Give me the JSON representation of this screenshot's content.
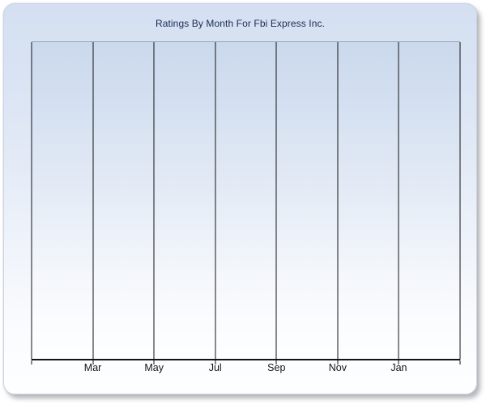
{
  "panel": {
    "title": "Ratings By Month For Fbi Express Inc."
  },
  "colors": {
    "title_text": "#1b2b52",
    "panel_bg_top": "#d4e0f2",
    "panel_bg_bottom": "#fdfeff",
    "panel_border": "#c9d3e2",
    "plot_bg_top": "#cbd9ed",
    "plot_bg_bottom": "#fdfeff",
    "plot_top_border": "#9aa5b6",
    "gridline": "#141414",
    "axis_line": "#141414",
    "tick_label_text": "#151515"
  },
  "chart_data": {
    "type": "line",
    "title": "Ratings By Month For Fbi Express Inc.",
    "xlabel": "",
    "ylabel": "",
    "x_tick_labels": [
      "Mar",
      "May",
      "Jul",
      "Sep",
      "Nov",
      "Jan"
    ],
    "x_gridline_count": 8,
    "labeled_gridline_start_index": 1,
    "grid": "vertical",
    "legend": null,
    "series": [],
    "notes": "plot area contains no visible data points; y-axis has no tick labels"
  }
}
